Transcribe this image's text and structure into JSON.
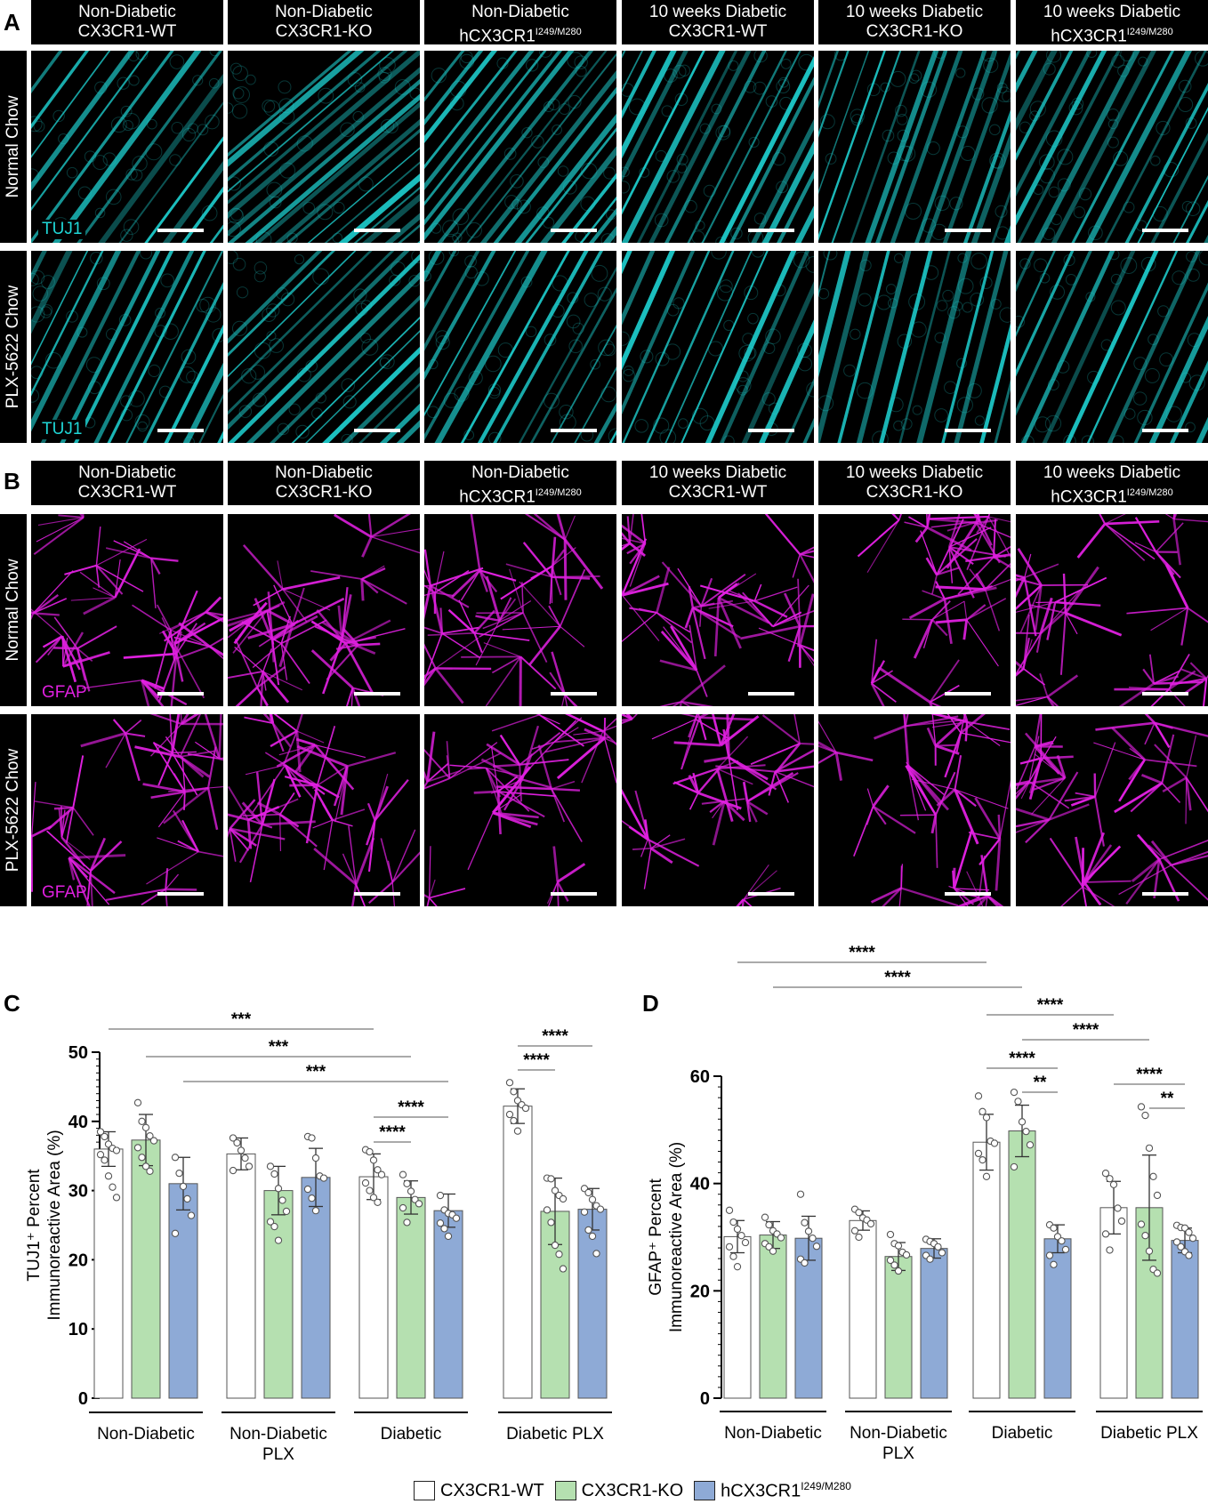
{
  "panels": {
    "A": {
      "letter": "A",
      "stain_label": "TUJ1",
      "stain_color": "#1fd6d6"
    },
    "B": {
      "letter": "B",
      "stain_label": "GFAP",
      "stain_color": "#e020e0"
    },
    "C": {
      "letter": "C"
    },
    "D": {
      "letter": "D"
    }
  },
  "columns": [
    {
      "line1": "Non-Diabetic",
      "line2": "CX3CR1-WT",
      "sup": ""
    },
    {
      "line1": "Non-Diabetic",
      "line2": "CX3CR1-KO",
      "sup": ""
    },
    {
      "line1": "Non-Diabetic",
      "line2": "hCX3CR1",
      "sup": "I249/M280"
    },
    {
      "line1": "10 weeks Diabetic",
      "line2": "CX3CR1-WT",
      "sup": ""
    },
    {
      "line1": "10 weeks Diabetic",
      "line2": "CX3CR1-KO",
      "sup": ""
    },
    {
      "line1": "10 weeks Diabetic",
      "line2": "hCX3CR1",
      "sup": "I249/M280"
    }
  ],
  "rows": [
    "Normal Chow",
    "PLX-5622 Chow"
  ],
  "legend": [
    {
      "label": "CX3CR1-WT",
      "sup": "",
      "color": "#ffffff"
    },
    {
      "label": "CX3CR1-KO",
      "sup": "",
      "color": "#b5e0b0"
    },
    {
      "label": "hCX3CR1",
      "sup": "I249/M280",
      "color": "#8eaad6"
    }
  ],
  "chart_data": [
    {
      "panel": "C",
      "type": "bar",
      "ylabel_line1": "TUJ1⁺ Percent",
      "ylabel_line2": "Immunoreactive Area (%)",
      "ylim": [
        0,
        50
      ],
      "yticks": [
        0,
        10,
        20,
        30,
        40,
        50
      ],
      "groups": [
        {
          "line1": "Non-Diabetic",
          "line2": ""
        },
        {
          "line1": "Non-Diabetic",
          "line2": "PLX"
        },
        {
          "line1": "Diabetic",
          "line2": ""
        },
        {
          "line1": "Diabetic PLX",
          "line2": ""
        }
      ],
      "series": [
        {
          "name": "CX3CR1-WT",
          "values": [
            36.0,
            35.3,
            32.0,
            42.2
          ],
          "sd": [
            2.5,
            2.3,
            3.3,
            2.5
          ],
          "points": [
            [
              38.5,
              37.8,
              36.7,
              36.1,
              35.8,
              35.2,
              34.4,
              32.1,
              30.5,
              29.0
            ],
            [
              37.6,
              36.9,
              35.8,
              34.7,
              33.5,
              32.9
            ],
            [
              35.9,
              35.6,
              34.4,
              33.0,
              32.3,
              31.1,
              30.0,
              29.0,
              28.3
            ],
            [
              45.6,
              44.3,
              43.0,
              42.4,
              41.9,
              41.0,
              40.1,
              38.6
            ]
          ]
        },
        {
          "name": "CX3CR1-KO",
          "values": [
            37.3,
            30.0,
            29.0,
            27.0
          ],
          "sd": [
            3.7,
            3.5,
            2.4,
            4.8
          ],
          "points": [
            [
              42.7,
              40.0,
              39.1,
              37.9,
              37.2,
              36.2,
              34.8,
              33.5,
              32.8
            ],
            [
              33.5,
              32.4,
              30.3,
              28.6,
              27.0,
              25.5,
              24.8,
              22.8
            ],
            [
              32.3,
              31.0,
              29.9,
              28.7,
              28.1,
              27.5,
              25.4
            ],
            [
              31.8,
              31.7,
              30.0,
              29.3,
              28.8,
              27.2,
              25.4,
              22.1,
              20.8,
              18.7
            ]
          ]
        },
        {
          "name": "hCX3CR1 I249/M280",
          "values": [
            31.0,
            31.9,
            27.1,
            27.3
          ],
          "sd": [
            3.8,
            4.2,
            2.4,
            3.0
          ],
          "points": [
            [
              34.8,
              32.5,
              30.6,
              28.8,
              26.4,
              23.8
            ],
            [
              37.8,
              37.6,
              34.7,
              32.1,
              31.8,
              30.2,
              28.9,
              27.1
            ],
            [
              29.3,
              27.2,
              26.7,
              26.5,
              26.0,
              25.3,
              24.5,
              23.4
            ],
            [
              30.3,
              29.7,
              28.7,
              27.8,
              27.3,
              26.9,
              24.3,
              23.4,
              20.9
            ]
          ]
        }
      ],
      "significance": [
        {
          "label": "***",
          "from": [
            0,
            0
          ],
          "to": [
            2,
            0
          ]
        },
        {
          "label": "***",
          "from": [
            0,
            1
          ],
          "to": [
            2,
            1
          ]
        },
        {
          "label": "***",
          "from": [
            0,
            2
          ],
          "to": [
            2,
            2
          ]
        },
        {
          "label": "****",
          "from": [
            2,
            0
          ],
          "to": [
            2,
            2
          ]
        },
        {
          "label": "****",
          "from": [
            2,
            0
          ],
          "to": [
            2,
            1
          ]
        },
        {
          "label": "****",
          "from": [
            3,
            0
          ],
          "to": [
            3,
            2
          ]
        },
        {
          "label": "****",
          "from": [
            3,
            0
          ],
          "to": [
            3,
            1
          ]
        }
      ]
    },
    {
      "panel": "D",
      "type": "bar",
      "ylabel_line1": "GFAP⁺ Percent",
      "ylabel_line2": "Immunoreactive Area (%)",
      "ylim": [
        0,
        60
      ],
      "yticks": [
        0,
        20,
        40,
        60
      ],
      "groups": [
        {
          "line1": "Non-Diabetic",
          "line2": ""
        },
        {
          "line1": "Non-Diabetic",
          "line2": "PLX"
        },
        {
          "line1": "Diabetic",
          "line2": ""
        },
        {
          "line1": "Diabetic PLX",
          "line2": ""
        }
      ],
      "series": [
        {
          "name": "CX3CR1-WT",
          "values": [
            30.1,
            33.1,
            47.7,
            35.5
          ],
          "sd": [
            3.0,
            1.8,
            5.2,
            4.9
          ],
          "points": [
            [
              35.0,
              32.8,
              31.5,
              30.3,
              29.0,
              28.2,
              26.4,
              24.5
            ],
            [
              35.2,
              34.6,
              33.6,
              33.2,
              32.5,
              31.2,
              30.0
            ],
            [
              56.3,
              53.4,
              52.3,
              47.9,
              47.5,
              45.6,
              44.4,
              41.3
            ],
            [
              41.9,
              40.9,
              39.8,
              35.4,
              33.0,
              30.6,
              27.6
            ]
          ]
        },
        {
          "name": "CX3CR1-KO",
          "values": [
            30.4,
            26.4,
            49.8,
            35.5
          ],
          "sd": [
            2.5,
            2.6,
            4.8,
            9.8
          ],
          "points": [
            [
              33.7,
              32.3,
              31.2,
              30.6,
              29.9,
              28.8,
              28.2,
              27.4
            ],
            [
              30.5,
              28.8,
              28.4,
              27.2,
              26.7,
              25.7,
              24.8,
              23.7
            ],
            [
              57.0,
              55.3,
              51.5,
              49.7,
              47.2,
              43.1
            ],
            [
              54.3,
              52.7,
              46.6,
              41.3,
              37.8,
              32.4,
              30.3,
              27.4,
              24.0,
              23.3
            ]
          ]
        },
        {
          "name": "hCX3CR1 I249/M280",
          "values": [
            29.8,
            27.9,
            29.7,
            29.4
          ],
          "sd": [
            4.1,
            1.8,
            2.6,
            2.3
          ],
          "points": [
            [
              38.0,
              32.7,
              31.1,
              29.8,
              28.3,
              25.9,
              25.2
            ],
            [
              29.6,
              29.2,
              28.8,
              28.2,
              27.1,
              26.6,
              25.9
            ],
            [
              32.3,
              31.7,
              30.1,
              29.3,
              27.7,
              26.6,
              24.9
            ],
            [
              32.2,
              31.8,
              31.7,
              30.9,
              29.8,
              29.1,
              28.2,
              27.3,
              26.6
            ]
          ]
        }
      ],
      "significance": [
        {
          "label": "****",
          "from": [
            0,
            0
          ],
          "to": [
            2,
            0
          ]
        },
        {
          "label": "****",
          "from": [
            0,
            1
          ],
          "to": [
            2,
            1
          ]
        },
        {
          "label": "****",
          "from": [
            2,
            0
          ],
          "to": [
            3,
            0
          ]
        },
        {
          "label": "****",
          "from": [
            2,
            1
          ],
          "to": [
            3,
            1
          ]
        },
        {
          "label": "****",
          "from": [
            2,
            0
          ],
          "to": [
            2,
            2
          ]
        },
        {
          "label": "**",
          "from": [
            2,
            1
          ],
          "to": [
            2,
            2
          ]
        },
        {
          "label": "****",
          "from": [
            3,
            0
          ],
          "to": [
            3,
            2
          ]
        },
        {
          "label": "**",
          "from": [
            3,
            1
          ],
          "to": [
            3,
            2
          ]
        }
      ]
    }
  ]
}
